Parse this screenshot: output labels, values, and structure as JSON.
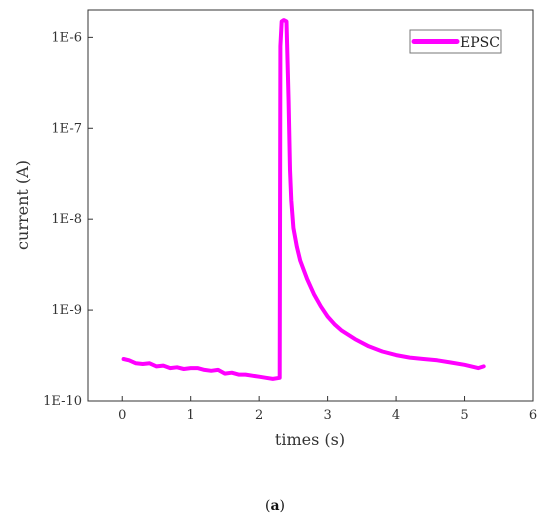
{
  "chart_data": {
    "type": "line",
    "xlabel": "times (s)",
    "ylabel": "current (A)",
    "xlim": [
      -0.5,
      6
    ],
    "ylim": [
      1e-10,
      2e-06
    ],
    "yscale": "log",
    "grid": false,
    "legend_position": "top-right",
    "x_ticks": [
      0,
      1,
      2,
      3,
      4,
      5,
      6
    ],
    "x_tick_labels": [
      "0",
      "1",
      "2",
      "3",
      "4",
      "5",
      "6"
    ],
    "y_ticks": [
      1e-10,
      1e-09,
      1e-08,
      1e-07,
      1e-06
    ],
    "y_tick_labels": [
      "1E-10",
      "1E-9",
      "1E-8",
      "1E-7",
      "1E-6"
    ],
    "series": [
      {
        "name": "EPSC",
        "color": "#ff00ff",
        "x": [
          0.02,
          0.1,
          0.2,
          0.3,
          0.4,
          0.5,
          0.6,
          0.7,
          0.8,
          0.9,
          1.0,
          1.1,
          1.2,
          1.3,
          1.4,
          1.5,
          1.6,
          1.7,
          1.8,
          1.9,
          2.0,
          2.1,
          2.2,
          2.3,
          2.31,
          2.33,
          2.36,
          2.4,
          2.43,
          2.45,
          2.47,
          2.5,
          2.55,
          2.6,
          2.7,
          2.8,
          2.9,
          3.0,
          3.1,
          3.2,
          3.4,
          3.6,
          3.8,
          4.0,
          4.2,
          4.4,
          4.6,
          4.8,
          5.0,
          5.1,
          5.2,
          5.28
        ],
        "y": [
          2.9e-10,
          2.8e-10,
          2.6e-10,
          2.55e-10,
          2.6e-10,
          2.4e-10,
          2.45e-10,
          2.3e-10,
          2.35e-10,
          2.25e-10,
          2.3e-10,
          2.3e-10,
          2.2e-10,
          2.15e-10,
          2.2e-10,
          2e-10,
          2.05e-10,
          1.95e-10,
          1.95e-10,
          1.9e-10,
          1.85e-10,
          1.8e-10,
          1.75e-10,
          1.8e-10,
          8e-07,
          1.5e-06,
          1.55e-06,
          1.5e-06,
          2e-07,
          3.5e-08,
          1.6e-08,
          8e-09,
          5e-09,
          3.5e-09,
          2.2e-09,
          1.5e-09,
          1.1e-09,
          8.5e-10,
          7e-10,
          6e-10,
          4.8e-10,
          4e-10,
          3.5e-10,
          3.2e-10,
          3e-10,
          2.9e-10,
          2.8e-10,
          2.65e-10,
          2.5e-10,
          2.4e-10,
          2.3e-10,
          2.4e-10
        ]
      }
    ]
  },
  "caption": {
    "prefix": "(",
    "letter": "a",
    "suffix": ")"
  }
}
